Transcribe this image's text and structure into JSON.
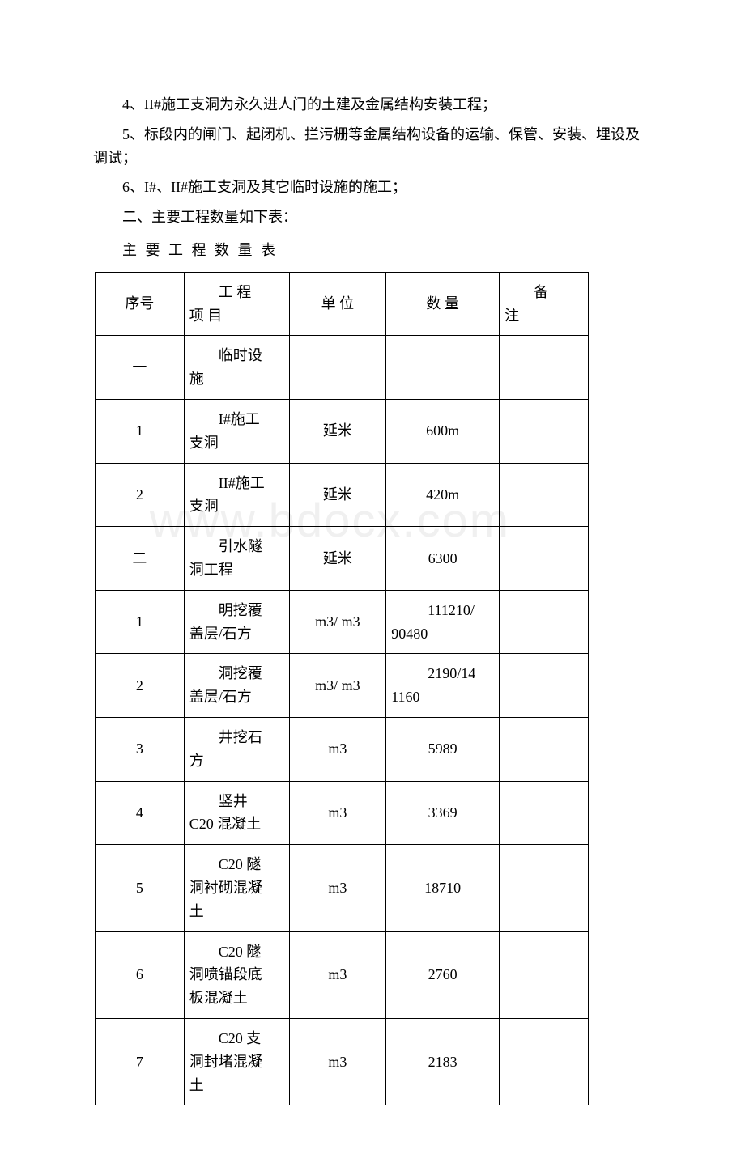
{
  "watermark": "www.bdocx.com",
  "paragraphs": {
    "p4": "4、II#施工支洞为永久进人门的土建及金属结构安装工程；",
    "p5": "5、标段内的闸门、起闭机、拦污栅等金属结构设备的运输、保管、安装、埋设及调试；",
    "p6": "6、I#、II#施工支洞及其它临时设施的施工；",
    "p_sec2": "二、主要工程数量如下表：",
    "p_title": "主 要 工 程 数 量 表"
  },
  "table": {
    "headers": {
      "seq": "序号",
      "item_l1": "工 程",
      "item_l2": "项 目",
      "unit": "单 位",
      "qty": "数    量",
      "note_l1": "备",
      "note_l2": "注"
    },
    "rows": [
      {
        "seq": "一",
        "item_l1": "临时设",
        "item_l2": "施",
        "unit": "",
        "qty": "",
        "note": ""
      },
      {
        "seq": "1",
        "item_l1": "I#施工",
        "item_l2": "支洞",
        "unit": "延米",
        "qty": "600m",
        "note": ""
      },
      {
        "seq": "2",
        "item_l1": "II#施工",
        "item_l2": "支洞",
        "unit": "延米",
        "qty": "420m",
        "note": ""
      },
      {
        "seq": "二",
        "item_l1": "引水隧",
        "item_l2": "洞工程",
        "unit": "延米",
        "qty": "6300",
        "note": ""
      },
      {
        "seq": "1",
        "item_l1": "明挖覆",
        "item_l2": "盖层/石方",
        "unit": "m3/ m3",
        "qty_l1": "111210/",
        "qty_l2": "90480",
        "note": ""
      },
      {
        "seq": "2",
        "item_l1": "洞挖覆",
        "item_l2": "盖层/石方",
        "unit": "m3/ m3",
        "qty_l1": "2190/14",
        "qty_l2": "1160",
        "note": ""
      },
      {
        "seq": "3",
        "item_l1": "井挖石",
        "item_l2": "方",
        "unit": "m3",
        "qty": "5989",
        "note": ""
      },
      {
        "seq": "4",
        "item_l1": "竖井",
        "item_l2": "C20 混凝土",
        "unit": "m3",
        "qty": "3369",
        "note": ""
      },
      {
        "seq": "5",
        "item_l1": "C20 隧",
        "item_l2": "洞衬砌混凝",
        "item_l3": "土",
        "unit": "m3",
        "qty": "18710",
        "note": ""
      },
      {
        "seq": "6",
        "item_l1": "C20 隧",
        "item_l2": "洞喷锚段底",
        "item_l3": "板混凝土",
        "unit": "m3",
        "qty": "2760",
        "note": ""
      },
      {
        "seq": "7",
        "item_l1": "C20 支",
        "item_l2": "洞封堵混凝",
        "item_l3": "土",
        "unit": "m3",
        "qty": "2183",
        "note": ""
      }
    ]
  }
}
